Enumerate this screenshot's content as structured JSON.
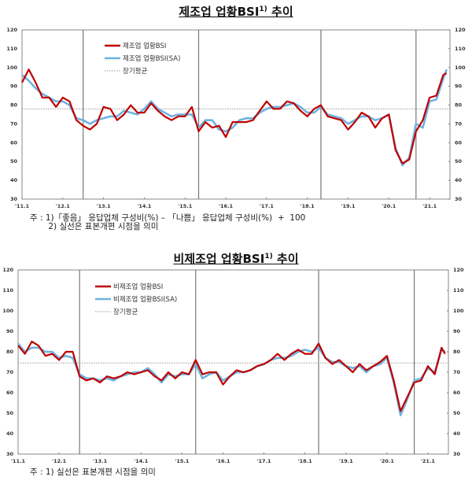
{
  "charts": [
    {
      "title_main": "제조업 업황BSI",
      "title_sup": "1)",
      "title_tail": " 추이",
      "legend": [
        "제조업 업황BSI",
        "제조업 업황BSI(SA)",
        "장기평균"
      ],
      "notes": [
        "주 : 1)「좋음」 응답업체 구성비(%) – 「나쁨」 응답업체 구성비(%)  +  100",
        "       2) 실선은 표본개편 시점을 의미"
      ]
    },
    {
      "title_main": "비제조업 업황BSI",
      "title_sup": "1)",
      "title_tail": " 추이",
      "legend": [
        "비제조업 업황BSI",
        "비제조업 업황BSI(SA)",
        "장기평균"
      ],
      "notes": [
        "주 : 1) 실선은 표본개편 시점을 의미"
      ]
    }
  ],
  "colors": {
    "raw": "#c00000",
    "sa": "#6fb3e0",
    "avg": "#999999",
    "axis": "#555555",
    "divider": "#777777"
  },
  "chart_data": [
    {
      "type": "line",
      "title": "제조업 업황BSI 추이",
      "xlabel": "",
      "ylabel": "",
      "ylim": [
        30,
        120
      ],
      "yticks": [
        30,
        40,
        50,
        60,
        70,
        80,
        90,
        100,
        110,
        120
      ],
      "xticks": [
        "'11.1",
        "'12.1",
        "'13.1",
        "'14.1",
        "'15.1",
        "'16.1",
        "'17.1",
        "'18.1",
        "'19.1",
        "'20.1",
        "'21.1"
      ],
      "sample_revisions": [
        "2012.7",
        "2015.5",
        "2018.5",
        "2020.9"
      ],
      "long_term_average": 78,
      "legend_position": "upper-left",
      "x": [
        "11.1",
        "11.3",
        "11.5",
        "11.7",
        "11.9",
        "11.11",
        "12.1",
        "12.3",
        "12.5",
        "12.7",
        "12.9",
        "12.11",
        "13.1",
        "13.3",
        "13.5",
        "13.7",
        "13.9",
        "13.11",
        "14.1",
        "14.3",
        "14.5",
        "14.7",
        "14.9",
        "14.11",
        "15.1",
        "15.3",
        "15.5",
        "15.7",
        "15.9",
        "15.11",
        "16.1",
        "16.3",
        "16.5",
        "16.7",
        "16.9",
        "16.11",
        "17.1",
        "17.3",
        "17.5",
        "17.7",
        "17.9",
        "17.11",
        "18.1",
        "18.3",
        "18.5",
        "18.7",
        "18.9",
        "18.11",
        "19.1",
        "19.3",
        "19.5",
        "19.7",
        "19.9",
        "19.11",
        "20.1",
        "20.3",
        "20.5",
        "20.7",
        "20.9",
        "20.11",
        "21.1",
        "21.3",
        "21.5",
        "21.6"
      ],
      "series": [
        {
          "name": "제조업 업황BSI",
          "values": [
            92,
            99,
            92,
            84,
            84,
            79,
            84,
            82,
            72,
            69,
            67,
            70,
            79,
            78,
            72,
            75,
            80,
            76,
            76,
            81,
            77,
            74,
            72,
            74,
            74,
            79,
            66,
            71,
            68,
            69,
            63,
            71,
            71,
            71,
            72,
            77,
            82,
            78,
            78,
            82,
            81,
            77,
            74,
            78,
            80,
            74,
            73,
            72,
            67,
            71,
            76,
            74,
            68,
            73,
            75,
            56,
            49,
            51,
            66,
            72,
            84,
            85,
            96,
            97
          ]
        },
        {
          "name": "제조업 업황BSI(SA)",
          "values": [
            96,
            93,
            89,
            86,
            84,
            82,
            82,
            80,
            73,
            72,
            70,
            72,
            73,
            74,
            74,
            77,
            76,
            75,
            78,
            82,
            78,
            76,
            74,
            75,
            75,
            75,
            68,
            72,
            72,
            67,
            66,
            68,
            72,
            73,
            73,
            76,
            78,
            79,
            79,
            80,
            81,
            79,
            76,
            76,
            79,
            75,
            74,
            73,
            70,
            72,
            74,
            74,
            72,
            73,
            75,
            57,
            48,
            52,
            70,
            68,
            82,
            83,
            94,
            99
          ]
        },
        {
          "name": "장기평균",
          "values": "constant 78"
        }
      ]
    },
    {
      "type": "line",
      "title": "비제조업 업황BSI 추이",
      "xlabel": "",
      "ylabel": "",
      "ylim": [
        30,
        120
      ],
      "yticks": [
        30,
        40,
        50,
        60,
        70,
        80,
        90,
        100,
        110,
        120
      ],
      "xticks": [
        "'11.1",
        "'12.1",
        "'13.1",
        "'14.1",
        "'15.1",
        "'16.1",
        "'17.1",
        "'18.1",
        "'19.1",
        "'20.1",
        "'21.1"
      ],
      "sample_revisions": [
        "2012.7",
        "2015.5",
        "2018.5",
        "2020.9"
      ],
      "long_term_average": 74.5,
      "legend_position": "upper-left",
      "x": [
        "11.1",
        "11.3",
        "11.5",
        "11.7",
        "11.9",
        "11.11",
        "12.1",
        "12.3",
        "12.5",
        "12.7",
        "12.9",
        "12.11",
        "13.1",
        "13.3",
        "13.5",
        "13.7",
        "13.9",
        "13.11",
        "14.1",
        "14.3",
        "14.5",
        "14.7",
        "14.9",
        "14.11",
        "15.1",
        "15.3",
        "15.5",
        "15.7",
        "15.9",
        "15.11",
        "16.1",
        "16.3",
        "16.5",
        "16.7",
        "16.9",
        "16.11",
        "17.1",
        "17.3",
        "17.5",
        "17.7",
        "17.9",
        "17.11",
        "18.1",
        "18.3",
        "18.5",
        "18.7",
        "18.9",
        "18.11",
        "19.1",
        "19.3",
        "19.5",
        "19.7",
        "19.9",
        "19.11",
        "20.1",
        "20.3",
        "20.5",
        "20.7",
        "20.9",
        "20.11",
        "21.1",
        "21.3",
        "21.5",
        "21.6"
      ],
      "series": [
        {
          "name": "비제조업 업황BSI",
          "values": [
            83,
            79,
            85,
            83,
            78,
            79,
            76,
            80,
            80,
            68,
            66,
            67,
            65,
            68,
            67,
            68,
            70,
            69,
            70,
            71,
            68,
            66,
            70,
            67,
            70,
            69,
            76,
            69,
            70,
            70,
            64,
            68,
            71,
            70,
            71,
            73,
            74,
            76,
            79,
            76,
            79,
            81,
            79,
            79,
            84,
            77,
            74,
            76,
            73,
            70,
            74,
            71,
            73,
            75,
            78,
            66,
            51,
            58,
            65,
            66,
            73,
            69,
            82,
            79
          ]
        },
        {
          "name": "비제조업 업황BSI(SA)",
          "values": [
            84,
            80,
            82,
            82,
            80,
            80,
            77,
            78,
            77,
            69,
            67,
            67,
            66,
            67,
            66,
            68,
            69,
            70,
            70,
            72,
            69,
            65,
            69,
            68,
            69,
            69,
            74,
            67,
            69,
            70,
            66,
            68,
            70,
            70,
            71,
            73,
            74,
            76,
            77,
            77,
            78,
            80,
            81,
            80,
            82,
            77,
            75,
            75,
            73,
            72,
            73,
            70,
            73,
            74,
            77,
            65,
            49,
            57,
            66,
            67,
            72,
            70,
            81,
            80
          ]
        },
        {
          "name": "장기평균",
          "values": "constant 74.5"
        }
      ]
    }
  ]
}
